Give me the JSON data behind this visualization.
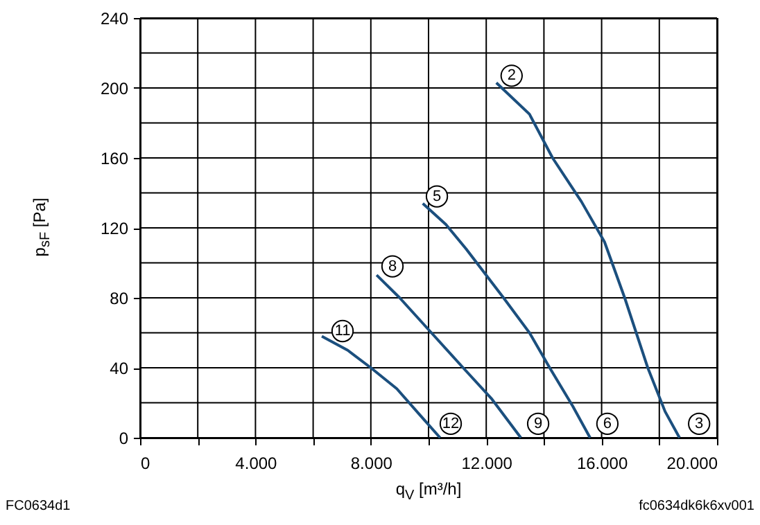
{
  "chart_data": {
    "type": "line",
    "xlabel": "q$_{V}$ [m³/h]",
    "ylabel": "p$_{sF}$ [Pa]",
    "xlim": [
      0,
      20000
    ],
    "ylim": [
      0,
      240
    ],
    "xticks": [
      {
        "value": 0,
        "label": "0"
      },
      {
        "value": 2000,
        "label": null
      },
      {
        "value": 4000,
        "label": "4.000"
      },
      {
        "value": 6000,
        "label": null
      },
      {
        "value": 8000,
        "label": "8.000"
      },
      {
        "value": 10000,
        "label": null
      },
      {
        "value": 12000,
        "label": "12.000"
      },
      {
        "value": 14000,
        "label": null
      },
      {
        "value": 16000,
        "label": "16.000"
      },
      {
        "value": 18000,
        "label": null
      },
      {
        "value": 20000,
        "label": "20.000"
      }
    ],
    "yticks": [
      0,
      {
        "value": 20,
        "label": null
      },
      40,
      {
        "value": 60,
        "label": null
      },
      80,
      {
        "value": 100,
        "label": null
      },
      120,
      {
        "value": 140,
        "label": null
      },
      160,
      {
        "value": 180,
        "label": null
      },
      200,
      {
        "value": 220,
        "label": null
      },
      240
    ],
    "grid": true,
    "legend": false,
    "marker": "none",
    "line_style": "solid",
    "series": [
      {
        "color": "#1b4f7e",
        "x": [
          12350,
          13500,
          14300,
          15300,
          16100,
          16800,
          17600,
          18200,
          18700
        ],
        "values": [
          203,
          185,
          160,
          135,
          112,
          80,
          40,
          15,
          0
        ]
      },
      {
        "color": "#1b4f7e",
        "x": [
          9800,
          10600,
          11300,
          12600,
          13500,
          14200,
          15000,
          15600
        ],
        "values": [
          134,
          122,
          108,
          80,
          60,
          40,
          18,
          0
        ]
      },
      {
        "color": "#1b4f7e",
        "x": [
          8200,
          9000,
          10100,
          11200,
          12200,
          13200
        ],
        "values": [
          93,
          80,
          60,
          40,
          22,
          0
        ]
      },
      {
        "color": "#1b4f7e",
        "x": [
          6300,
          7200,
          8000,
          8900,
          9700,
          10400
        ],
        "values": [
          58,
          50,
          40,
          28,
          13,
          0
        ]
      }
    ],
    "annotations": [
      {
        "text": "2",
        "x": 12880,
        "y": 207
      },
      {
        "text": "3",
        "x": 19380,
        "y": 8
      },
      {
        "text": "5",
        "x": 10290,
        "y": 138
      },
      {
        "text": "6",
        "x": 16200,
        "y": 8
      },
      {
        "text": "8",
        "x": 8750,
        "y": 98
      },
      {
        "text": "9",
        "x": 13800,
        "y": 8
      },
      {
        "text": "11",
        "x": 7020,
        "y": 61
      },
      {
        "text": "12",
        "x": 10770,
        "y": 8
      },
      "FC0634d1",
      "fc0634dk6k6xv001"
    ]
  }
}
